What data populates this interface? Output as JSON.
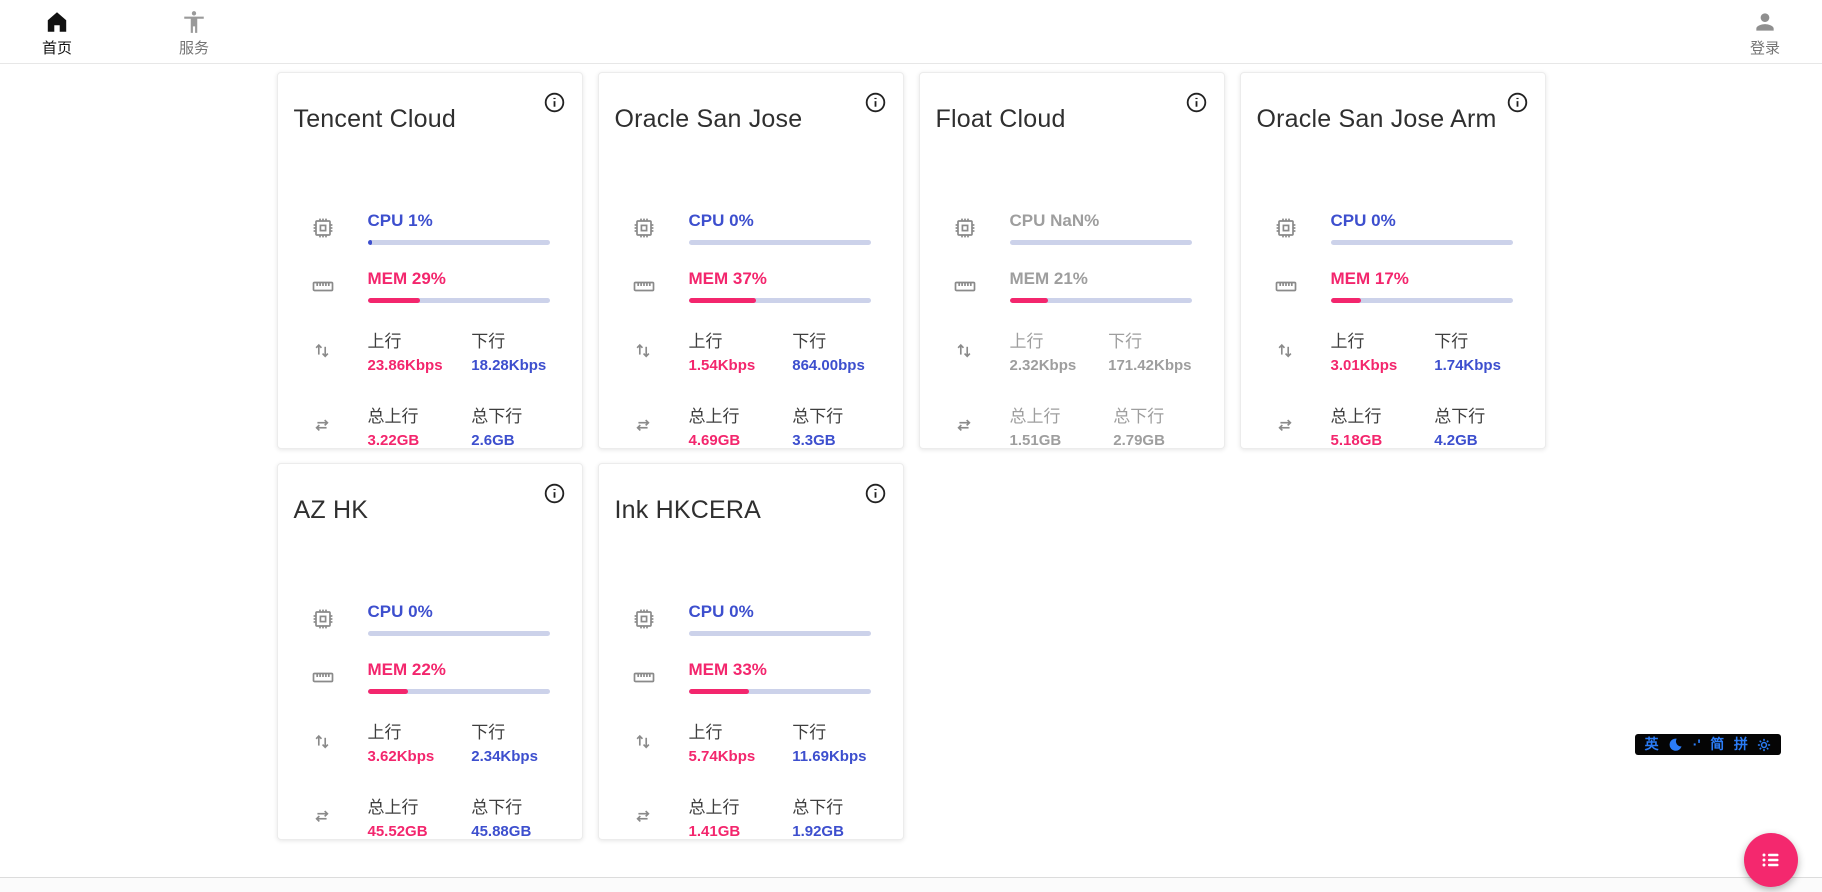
{
  "nav": {
    "home": {
      "label": "首页",
      "icon": "home-icon"
    },
    "services": {
      "label": "服务",
      "icon": "accessibility-icon"
    },
    "login": {
      "label": "登录",
      "icon": "person-icon"
    }
  },
  "card_labels": {
    "up": "上行",
    "down": "下行",
    "total_up": "总上行",
    "total_down": "总下行"
  },
  "cards": [
    {
      "title": "Tencent Cloud",
      "cpu_text": "CPU 1%",
      "cpu_pct": 1,
      "mem_text": "MEM 29%",
      "mem_pct": 29,
      "up_value": "23.86Kbps",
      "down_value": "18.28Kbps",
      "total_up_value": "3.22GB",
      "total_down_value": "2.6GB",
      "offline": false
    },
    {
      "title": "Oracle San Jose",
      "cpu_text": "CPU 0%",
      "cpu_pct": 0,
      "mem_text": "MEM 37%",
      "mem_pct": 37,
      "up_value": "1.54Kbps",
      "down_value": "864.00bps",
      "total_up_value": "4.69GB",
      "total_down_value": "3.3GB",
      "offline": false
    },
    {
      "title": "Float Cloud",
      "cpu_text": "CPU NaN%",
      "cpu_pct": 0,
      "mem_text": "MEM 21%",
      "mem_pct": 21,
      "up_value": "2.32Kbps",
      "down_value": "171.42Kbps",
      "total_up_value": "1.51GB",
      "total_down_value": "2.79GB",
      "offline": true
    },
    {
      "title": "Oracle San Jose Arm",
      "cpu_text": "CPU 0%",
      "cpu_pct": 0,
      "mem_text": "MEM 17%",
      "mem_pct": 17,
      "up_value": "3.01Kbps",
      "down_value": "1.74Kbps",
      "total_up_value": "5.18GB",
      "total_down_value": "4.2GB",
      "offline": false
    },
    {
      "title": "AZ HK",
      "cpu_text": "CPU 0%",
      "cpu_pct": 0,
      "mem_text": "MEM 22%",
      "mem_pct": 22,
      "up_value": "3.62Kbps",
      "down_value": "2.34Kbps",
      "total_up_value": "45.52GB",
      "total_down_value": "45.88GB",
      "offline": false
    },
    {
      "title": "Ink HKCERA",
      "cpu_text": "CPU 0%",
      "cpu_pct": 0,
      "mem_text": "MEM 33%",
      "mem_pct": 33,
      "up_value": "5.74Kbps",
      "down_value": "11.69Kbps",
      "total_up_value": "1.41GB",
      "total_down_value": "1.92GB",
      "offline": false
    }
  ],
  "ime_bar": {
    "items": [
      {
        "type": "text",
        "value": "英"
      },
      {
        "type": "icon",
        "value": "moon-icon"
      },
      {
        "type": "text",
        "value": "·'"
      },
      {
        "type": "text",
        "value": "简"
      },
      {
        "type": "text",
        "value": "拼"
      },
      {
        "type": "icon",
        "value": "gear-icon"
      }
    ]
  },
  "fab": {
    "icon": "list-icon"
  },
  "colors": {
    "accent_blue": "#3d4fce",
    "accent_pink": "#f3266d",
    "bar_track": "#ccd2ea",
    "offline_gray": "#9e9e9e",
    "ime_blue": "#2b7cf6",
    "fab_pink": "#f4286e"
  }
}
